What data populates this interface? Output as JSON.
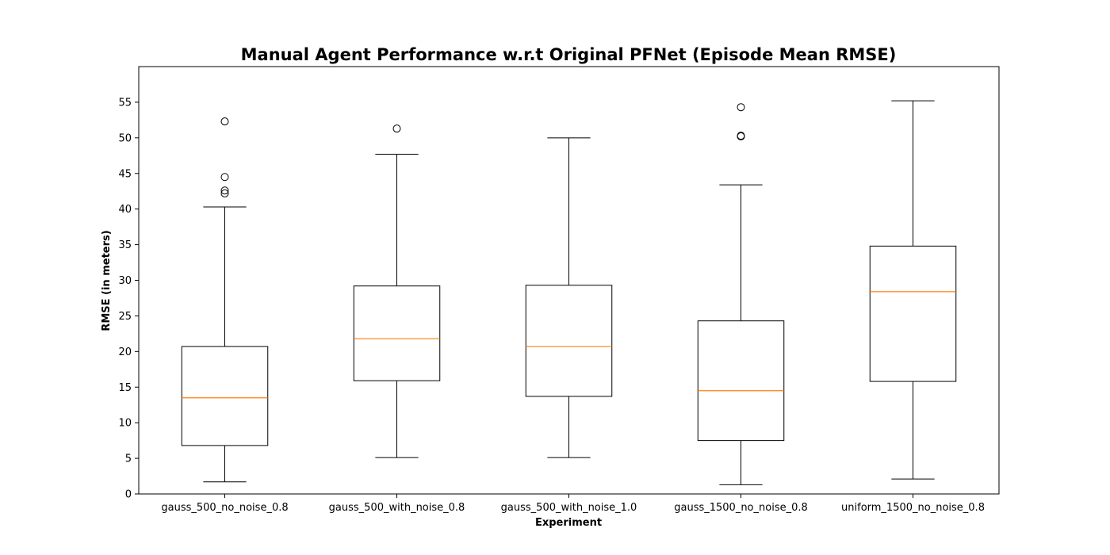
{
  "chart_data": {
    "type": "boxplot",
    "title": "Manual Agent Performance w.r.t Original PFNet (Episode Mean RMSE)",
    "xlabel": "Experiment",
    "ylabel": "RMSE (in meters)",
    "ylim": [
      0,
      60
    ],
    "yticks": [
      0,
      5,
      10,
      15,
      20,
      25,
      30,
      35,
      40,
      45,
      50,
      55
    ],
    "grid": false,
    "legend": "none",
    "colors": {
      "box": "#000000",
      "median": "#ff7f0e",
      "outlier": "#000000"
    },
    "categories": [
      "gauss_500_no_noise_0.8",
      "gauss_500_with_noise_0.8",
      "gauss_500_with_noise_1.0",
      "gauss_1500_no_noise_0.8",
      "uniform_1500_no_noise_0.8"
    ],
    "boxes": [
      {
        "whisker_low": 1.7,
        "q1": 6.8,
        "median": 13.5,
        "q3": 20.7,
        "whisker_high": 40.3,
        "outliers": [
          42.2,
          42.6,
          44.5,
          52.3
        ]
      },
      {
        "whisker_low": 5.1,
        "q1": 15.9,
        "median": 21.8,
        "q3": 29.2,
        "whisker_high": 47.7,
        "outliers": [
          51.3
        ]
      },
      {
        "whisker_low": 5.1,
        "q1": 13.7,
        "median": 20.7,
        "q3": 29.3,
        "whisker_high": 50.0,
        "outliers": []
      },
      {
        "whisker_low": 1.3,
        "q1": 7.5,
        "median": 14.5,
        "q3": 24.3,
        "whisker_high": 43.4,
        "outliers": [
          50.2,
          50.3,
          54.3
        ]
      },
      {
        "whisker_low": 2.1,
        "q1": 15.8,
        "median": 28.4,
        "q3": 34.8,
        "whisker_high": 55.2,
        "outliers": []
      }
    ]
  }
}
